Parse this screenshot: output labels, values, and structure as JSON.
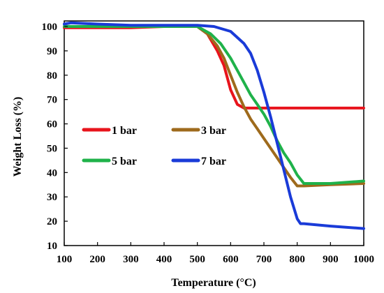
{
  "chart_data": {
    "type": "line",
    "xlabel": "Temperature  (°C)",
    "ylabel": "Weight Loss (%)",
    "xlim": [
      100,
      1000
    ],
    "ylim": [
      10,
      105
    ],
    "xticks": [
      100,
      200,
      300,
      400,
      500,
      600,
      700,
      800,
      900,
      1000
    ],
    "yticks": [
      10,
      20,
      30,
      40,
      50,
      60,
      70,
      80,
      90,
      100
    ],
    "grid": false,
    "legend_position": "center-left, inside plot",
    "series": [
      {
        "name": "1 bar",
        "color": "#e8141c",
        "x": [
          100,
          150,
          200,
          300,
          400,
          500,
          530,
          560,
          580,
          600,
          620,
          640,
          660,
          700,
          800,
          900,
          1000
        ],
        "y": [
          99.5,
          99.5,
          99.5,
          99.5,
          100,
          100,
          97,
          90,
          84,
          74,
          68,
          66.5,
          66.5,
          66.5,
          66.5,
          66.5,
          66.5
        ]
      },
      {
        "name": "3 bar",
        "color": "#9e6a1c",
        "x": [
          100,
          200,
          300,
          400,
          500,
          530,
          560,
          580,
          600,
          620,
          640,
          660,
          680,
          700,
          720,
          740,
          760,
          780,
          800,
          820,
          900,
          1000
        ],
        "y": [
          100,
          100,
          100,
          100,
          100,
          97,
          92,
          87,
          80,
          73,
          67,
          62,
          58,
          54,
          50,
          46,
          42,
          38,
          34.5,
          34.5,
          35,
          35.5
        ]
      },
      {
        "name": "5 bar",
        "color": "#1fb24a",
        "x": [
          100,
          200,
          300,
          400,
          500,
          540,
          570,
          600,
          620,
          640,
          660,
          680,
          700,
          720,
          740,
          760,
          780,
          800,
          820,
          900,
          1000
        ],
        "y": [
          100,
          100,
          100,
          100,
          100,
          97,
          93,
          87,
          82,
          77,
          72,
          68,
          64,
          59,
          53,
          48,
          44,
          39,
          35.5,
          35.5,
          36.5
        ]
      },
      {
        "name": "7 bar",
        "color": "#1a3bd8",
        "x": [
          100,
          120,
          200,
          300,
          400,
          500,
          550,
          600,
          640,
          660,
          680,
          700,
          720,
          740,
          760,
          780,
          800,
          810,
          820,
          900,
          1000
        ],
        "y": [
          101,
          101.5,
          101,
          100.5,
          100.5,
          100.5,
          100,
          98,
          93,
          89,
          82,
          73,
          63,
          52,
          41,
          30,
          21,
          19,
          19,
          18,
          17
        ]
      }
    ]
  }
}
